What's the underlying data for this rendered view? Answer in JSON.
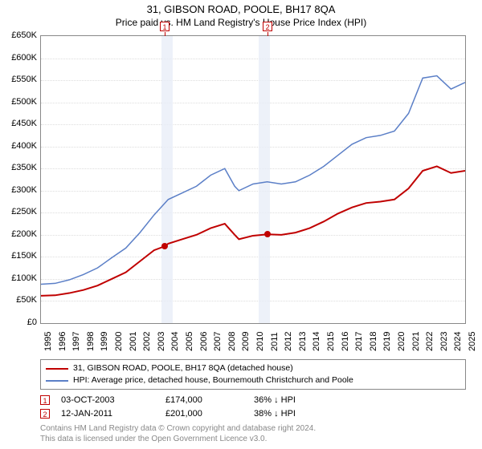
{
  "title": "31, GIBSON ROAD, POOLE, BH17 8QA",
  "subtitle": "Price paid vs. HM Land Registry's House Price Index (HPI)",
  "chart": {
    "type": "line",
    "x_min": 1995,
    "x_max": 2025,
    "y_min": 0,
    "y_max": 650,
    "ytick_step": 50,
    "yticks": [
      "£0",
      "£50K",
      "£100K",
      "£150K",
      "£200K",
      "£250K",
      "£300K",
      "£350K",
      "£400K",
      "£450K",
      "£500K",
      "£550K",
      "£600K",
      "£650K"
    ],
    "xticks": [
      "1995",
      "1996",
      "1997",
      "1998",
      "1999",
      "2000",
      "2001",
      "2002",
      "2003",
      "2004",
      "2005",
      "2006",
      "2007",
      "2008",
      "2009",
      "2010",
      "2011",
      "2012",
      "2013",
      "2014",
      "2015",
      "2016",
      "2017",
      "2018",
      "2019",
      "2020",
      "2021",
      "2022",
      "2023",
      "2024",
      "2025"
    ],
    "grid_color": "#dddddd",
    "background_color": "#ffffff",
    "shade_color": "#e9eef7",
    "shade_regions": [
      {
        "from": 2003.5,
        "to": 2004.3
      },
      {
        "from": 2010.4,
        "to": 2011.2
      }
    ],
    "series": [
      {
        "name": "property",
        "color": "#c00000",
        "width": 2,
        "points": [
          [
            1995,
            62
          ],
          [
            1996,
            63
          ],
          [
            1997,
            68
          ],
          [
            1998,
            75
          ],
          [
            1999,
            85
          ],
          [
            2000,
            100
          ],
          [
            2001,
            115
          ],
          [
            2002,
            140
          ],
          [
            2003,
            165
          ],
          [
            2003.75,
            174
          ],
          [
            2004,
            180
          ],
          [
            2005,
            190
          ],
          [
            2006,
            200
          ],
          [
            2007,
            215
          ],
          [
            2008,
            225
          ],
          [
            2008.7,
            200
          ],
          [
            2009,
            190
          ],
          [
            2010,
            198
          ],
          [
            2011.03,
            201
          ],
          [
            2012,
            200
          ],
          [
            2013,
            205
          ],
          [
            2014,
            215
          ],
          [
            2015,
            230
          ],
          [
            2016,
            248
          ],
          [
            2017,
            262
          ],
          [
            2018,
            272
          ],
          [
            2019,
            275
          ],
          [
            2020,
            280
          ],
          [
            2021,
            305
          ],
          [
            2022,
            345
          ],
          [
            2023,
            355
          ],
          [
            2024,
            340
          ],
          [
            2025,
            345
          ]
        ]
      },
      {
        "name": "hpi",
        "color": "#5b7fc7",
        "width": 1.5,
        "points": [
          [
            1995,
            88
          ],
          [
            1996,
            90
          ],
          [
            1997,
            98
          ],
          [
            1998,
            110
          ],
          [
            1999,
            125
          ],
          [
            2000,
            148
          ],
          [
            2001,
            170
          ],
          [
            2002,
            205
          ],
          [
            2003,
            245
          ],
          [
            2004,
            280
          ],
          [
            2005,
            295
          ],
          [
            2006,
            310
          ],
          [
            2007,
            335
          ],
          [
            2008,
            350
          ],
          [
            2008.7,
            310
          ],
          [
            2009,
            300
          ],
          [
            2010,
            315
          ],
          [
            2011,
            320
          ],
          [
            2012,
            315
          ],
          [
            2013,
            320
          ],
          [
            2014,
            335
          ],
          [
            2015,
            355
          ],
          [
            2016,
            380
          ],
          [
            2017,
            405
          ],
          [
            2018,
            420
          ],
          [
            2019,
            425
          ],
          [
            2020,
            435
          ],
          [
            2021,
            475
          ],
          [
            2022,
            555
          ],
          [
            2023,
            560
          ],
          [
            2024,
            530
          ],
          [
            2025,
            545
          ]
        ]
      }
    ],
    "sale_markers": [
      {
        "n": 1,
        "x": 2003.75,
        "y": 174,
        "color": "#c00000"
      },
      {
        "n": 2,
        "x": 2011.03,
        "y": 201,
        "color": "#c00000"
      }
    ]
  },
  "legend": [
    {
      "color": "#c00000",
      "label": "31, GIBSON ROAD, POOLE, BH17 8QA (detached house)"
    },
    {
      "color": "#5b7fc7",
      "label": "HPI: Average price, detached house, Bournemouth Christchurch and Poole"
    }
  ],
  "sales": [
    {
      "n": "1",
      "date": "03-OCT-2003",
      "price": "£174,000",
      "delta": "36% ↓ HPI"
    },
    {
      "n": "2",
      "date": "12-JAN-2011",
      "price": "£201,000",
      "delta": "38% ↓ HPI"
    }
  ],
  "footer_line1": "Contains HM Land Registry data © Crown copyright and database right 2024.",
  "footer_line2": "This data is licensed under the Open Government Licence v3.0."
}
